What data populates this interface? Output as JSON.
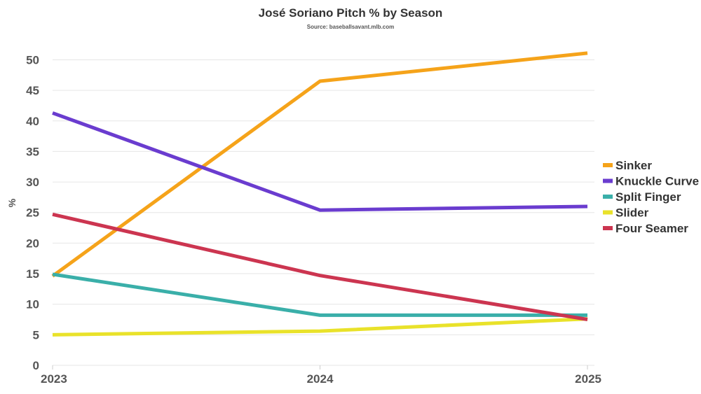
{
  "chart_data": {
    "type": "line",
    "title": "José Soriano Pitch % by Season",
    "subtitle": "Source: baseballsavant.mlb.com",
    "xlabel": "",
    "ylabel": "%",
    "x": [
      "2023",
      "2024",
      "2025"
    ],
    "ylim": [
      0,
      52
    ],
    "yticks": [
      0,
      5,
      10,
      15,
      20,
      25,
      30,
      35,
      40,
      45,
      50
    ],
    "grid": true,
    "legend_position": "right",
    "series": [
      {
        "name": "Sinker",
        "color": "#F5A31A",
        "values": [
          14.6,
          46.5,
          51.1
        ]
      },
      {
        "name": "Knuckle Curve",
        "color": "#6A3CCF",
        "values": [
          41.3,
          25.4,
          26.0
        ]
      },
      {
        "name": "Split Finger",
        "color": "#3AAFA9",
        "values": [
          14.9,
          8.2,
          8.2
        ]
      },
      {
        "name": "Slider",
        "color": "#E9E22A",
        "values": [
          5.0,
          5.6,
          7.6
        ]
      },
      {
        "name": "Four Seamer",
        "color": "#CC3550",
        "values": [
          24.7,
          14.7,
          7.5
        ]
      }
    ]
  }
}
